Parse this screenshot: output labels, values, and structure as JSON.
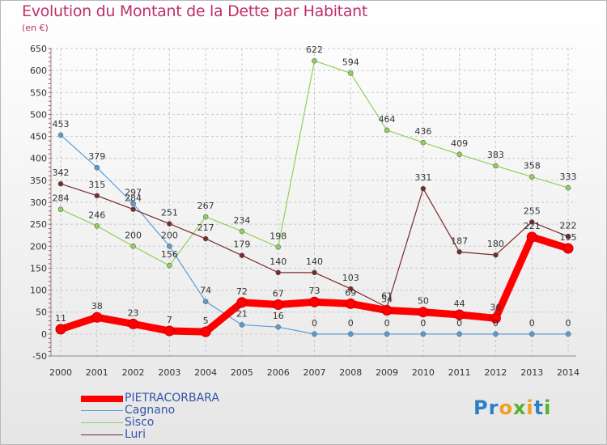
{
  "title": "Evolution du Montant de la Dette par Habitant",
  "subtitle": "(en €)",
  "logo": {
    "text": "Proxiti"
  },
  "chart_data": {
    "type": "line",
    "title": "Evolution du Montant de la Dette par Habitant",
    "subtitle": "(en €)",
    "xlabel": "",
    "ylabel": "",
    "x": [
      "2000",
      "2001",
      "2002",
      "2003",
      "2004",
      "2005",
      "2006",
      "2007",
      "2008",
      "2009",
      "2010",
      "2011",
      "2012",
      "2013",
      "2014"
    ],
    "ylim": [
      -50,
      650
    ],
    "yticks": [
      -50,
      0,
      50,
      100,
      150,
      200,
      250,
      300,
      350,
      400,
      450,
      500,
      550,
      600,
      650
    ],
    "grid": true,
    "legend_position": "bottom-left",
    "series": [
      {
        "name": "PIETRACORBARA",
        "color": "#ff0000",
        "values": [
          11,
          38,
          23,
          7,
          5,
          72,
          67,
          73,
          69,
          54,
          50,
          44,
          36,
          221,
          195
        ]
      },
      {
        "name": "Cagnano",
        "color": "#5b9bd5",
        "values": [
          453,
          379,
          297,
          200,
          74,
          21,
          16,
          0,
          0,
          0,
          0,
          0,
          0,
          0,
          0
        ]
      },
      {
        "name": "Sisco",
        "color": "#8fd05a",
        "values": [
          284,
          246,
          200,
          156,
          267,
          234,
          198,
          622,
          594,
          464,
          436,
          409,
          383,
          358,
          333
        ]
      },
      {
        "name": "Luri",
        "color": "#7a2a2a",
        "values": [
          342,
          315,
          284,
          251,
          217,
          179,
          140,
          140,
          103,
          61,
          331,
          187,
          180,
          255,
          222
        ]
      }
    ],
    "data_labels": [
      {
        "series": "PIETRACORBARA",
        "labels": [
          "11",
          "38",
          "23",
          "7",
          "5",
          "72",
          "67",
          "73",
          "69",
          "54",
          "50",
          "44",
          "36",
          "221",
          "195"
        ]
      },
      {
        "series": "Cagnano",
        "labels": [
          "453",
          "379",
          "297",
          "200",
          "74",
          "21",
          "16",
          "0",
          "0",
          "0",
          "0",
          "0",
          "0",
          "0",
          "0"
        ]
      },
      {
        "series": "Sisco",
        "labels": [
          "284",
          "246",
          "200",
          "156",
          "267",
          "234",
          "198",
          "622",
          "594",
          "464",
          "436",
          "409",
          "383",
          "358",
          "333"
        ]
      },
      {
        "series": "Luri",
        "labels": [
          "342",
          "315",
          "284",
          "251",
          "217",
          "179",
          "140",
          "140",
          "103",
          "61",
          "331",
          "187",
          "180",
          "255",
          "222"
        ]
      }
    ]
  }
}
